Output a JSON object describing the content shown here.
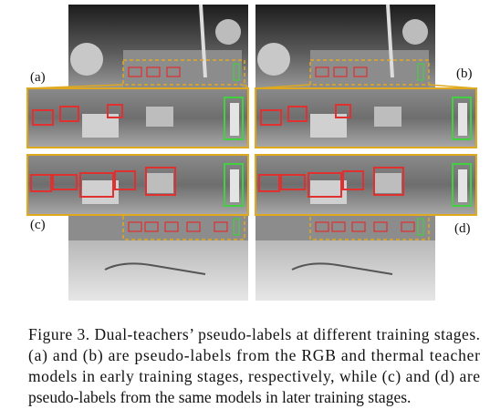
{
  "figure": {
    "panel_labels": [
      "(a)",
      "(b)",
      "(c)",
      "(d)"
    ],
    "caption_lines": [
      "Figure 3. Dual-teachers’ pseudo-labels at different training stages.",
      "(a) and (b) are pseudo-labels from the RGB and thermal teacher",
      "models in early training stages, respectively, while (c) and (d) are",
      "pseudo-labels from the same models in later training stages."
    ]
  }
}
